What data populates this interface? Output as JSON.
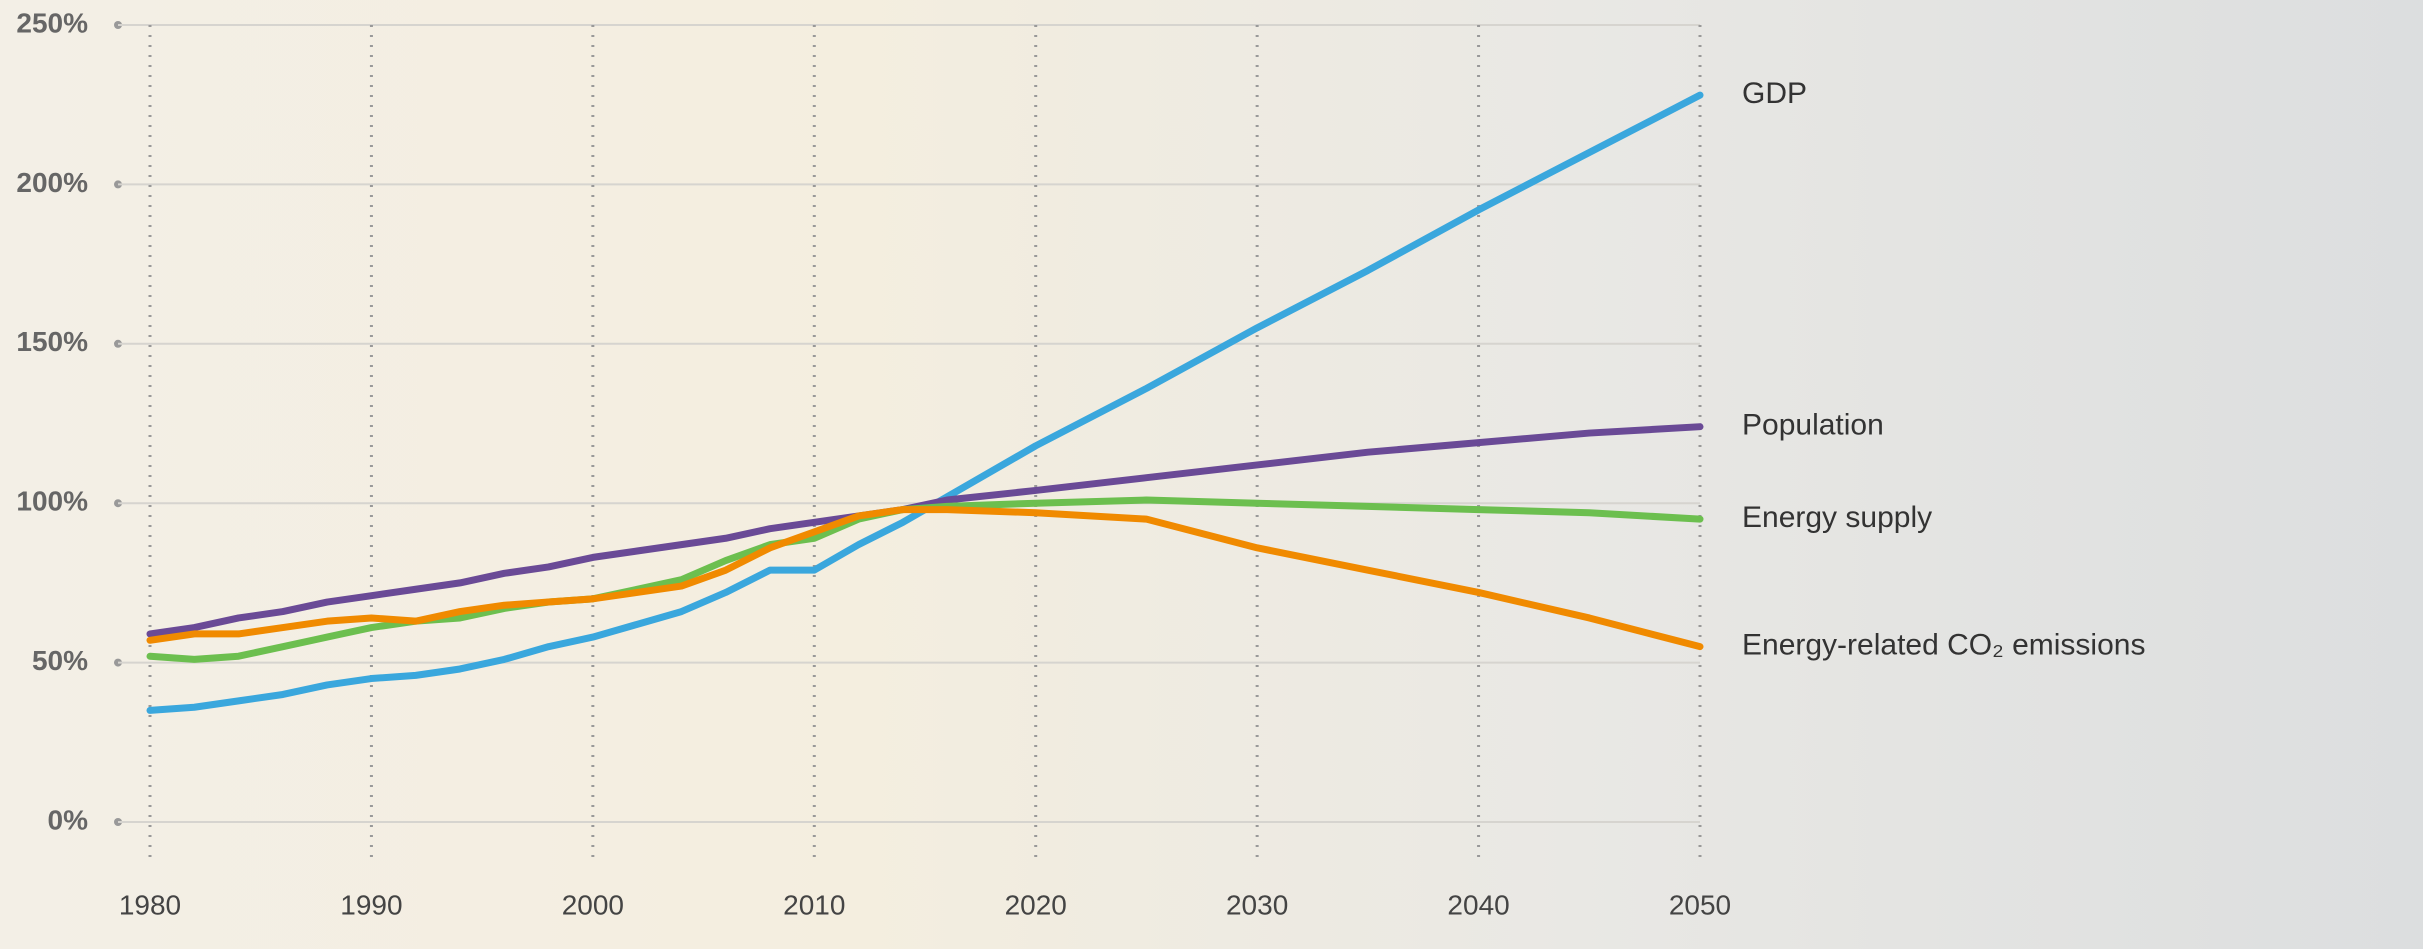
{
  "chart_data": {
    "type": "line",
    "x": [
      1980,
      1982,
      1984,
      1986,
      1988,
      1990,
      1992,
      1994,
      1996,
      1998,
      2000,
      2002,
      2004,
      2006,
      2008,
      2010,
      2012,
      2014,
      2016,
      2020,
      2025,
      2030,
      2035,
      2040,
      2045,
      2050
    ],
    "series": [
      {
        "name": "GDP",
        "color": "#3aa7dd",
        "values": [
          35,
          36,
          38,
          40,
          43,
          45,
          46,
          48,
          51,
          55,
          58,
          62,
          66,
          72,
          79,
          79,
          87,
          94,
          102,
          118,
          136,
          155,
          173,
          192,
          210,
          228
        ]
      },
      {
        "name": "Population",
        "color": "#6a4a96",
        "values": [
          59,
          61,
          64,
          66,
          69,
          71,
          73,
          75,
          78,
          80,
          83,
          85,
          87,
          89,
          92,
          94,
          96,
          98,
          101,
          104,
          108,
          112,
          116,
          119,
          122,
          124
        ]
      },
      {
        "name": "Energy supply",
        "color": "#6cbf4f",
        "values": [
          52,
          51,
          52,
          55,
          58,
          61,
          63,
          64,
          67,
          69,
          70,
          73,
          76,
          82,
          87,
          89,
          95,
          98,
          99,
          100,
          101,
          100,
          99,
          98,
          97,
          95
        ]
      },
      {
        "name": "Energy-related CO₂ emissions",
        "color": "#f08a00",
        "values": [
          57,
          59,
          59,
          61,
          63,
          64,
          63,
          66,
          68,
          69,
          70,
          72,
          74,
          79,
          86,
          91,
          96,
          98,
          98,
          97,
          95,
          86,
          79,
          72,
          64,
          55
        ]
      }
    ],
    "xlim": [
      1980,
      2050
    ],
    "xticks": [
      1980,
      1990,
      2000,
      2010,
      2020,
      2030,
      2040,
      2050
    ],
    "ylim": [
      0,
      250
    ],
    "yticks": [
      {
        "value": 0,
        "label": "0%"
      },
      {
        "value": 50,
        "label": "50%"
      },
      {
        "value": 100,
        "label": "100%"
      },
      {
        "value": 150,
        "label": "150%"
      },
      {
        "value": 200,
        "label": "200%"
      },
      {
        "value": 250,
        "label": "250%"
      }
    ],
    "grid": true
  }
}
